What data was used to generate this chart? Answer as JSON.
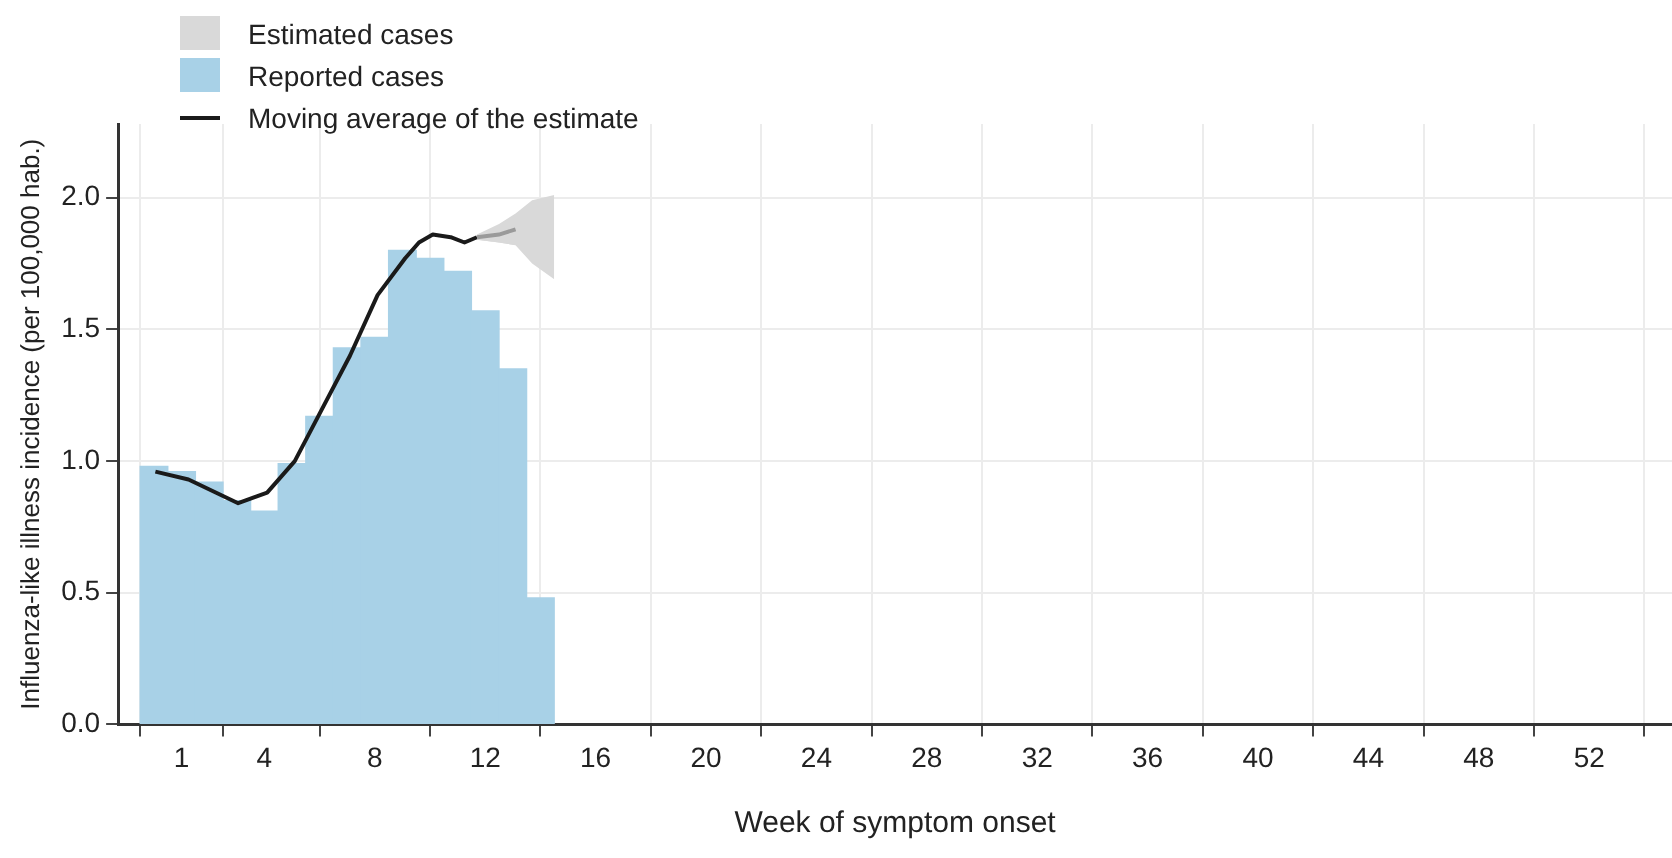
{
  "chart_data": {
    "type": "bar",
    "xlabel": "Week of symptom onset",
    "ylabel": "Influenza-like illness incidence (per 100,000 hab.)",
    "xlim": [
      -1.3,
      55
    ],
    "xticks": [
      1,
      4,
      8,
      12,
      16,
      20,
      24,
      28,
      32,
      36,
      40,
      44,
      48,
      52
    ],
    "ylim": [
      0,
      2.28
    ],
    "yticks": [
      {
        "value": 0,
        "label": "0.0"
      },
      {
        "value": 0.5,
        "label": "0.5"
      },
      {
        "value": 1,
        "label": "1.0"
      },
      {
        "value": 1.5,
        "label": "1.5"
      },
      {
        "value": 2,
        "label": "2.0"
      }
    ],
    "grid": true,
    "legend": "top left",
    "series": [
      {
        "name": "Estimated cases",
        "type": "area",
        "color": "#d9d9d9",
        "x": [
          11.7,
          12.5,
          13.1,
          13.7,
          14.5
        ],
        "values": [
          1.85,
          1.86,
          1.88,
          null,
          null
        ],
        "lower": [
          1.84,
          1.83,
          1.82,
          1.75,
          1.69
        ],
        "upper": [
          1.86,
          1.9,
          1.94,
          1.99,
          2.01
        ]
      },
      {
        "name": "Reported cases",
        "color": "#a8d1e7",
        "x": [
          0,
          1,
          2,
          3,
          4,
          5,
          6,
          7,
          8,
          9,
          10,
          11,
          12,
          13,
          14
        ],
        "values": [
          0.98,
          0.96,
          0.92,
          0.85,
          0.81,
          0.99,
          1.17,
          1.43,
          1.47,
          1.8,
          1.77,
          1.72,
          1.57,
          1.35,
          0.48
        ]
      },
      {
        "name": "Moving average of the estimate",
        "type": "line",
        "color": "#1a1a1a",
        "x": [
          0.05,
          1.25,
          3.05,
          4.1,
          5.1,
          6.1,
          7.1,
          8.1,
          9.1,
          9.6,
          10.1,
          10.75,
          11.25,
          11.7
        ],
        "values": [
          0.96,
          0.93,
          0.84,
          0.88,
          1.0,
          1.2,
          1.4,
          1.63,
          1.77,
          1.83,
          1.86,
          1.85,
          1.83,
          1.85
        ]
      }
    ]
  }
}
